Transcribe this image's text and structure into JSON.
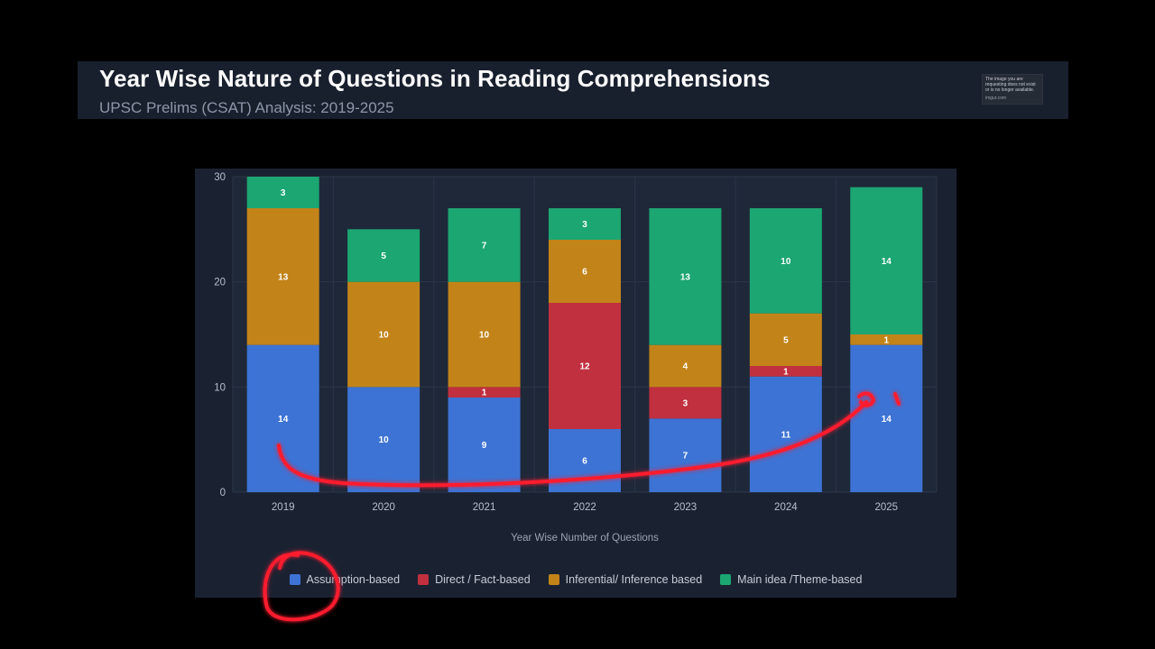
{
  "header": {
    "title": "Year Wise Nature of Questions in Reading Comprehensions",
    "subtitle": "UPSC Prelims (CSAT) Analysis: 2019-2025",
    "notice_text": "The image you are requesting does not exist or is no longer available.",
    "notice_source": "imgur.com"
  },
  "chart_data": {
    "type": "bar",
    "stacked": true,
    "categories": [
      "2019",
      "2020",
      "2021",
      "2022",
      "2023",
      "2024",
      "2025"
    ],
    "series": [
      {
        "name": "Assumption-based",
        "color": "#3d73d4",
        "values": [
          14,
          10,
          9,
          6,
          7,
          11,
          14
        ]
      },
      {
        "name": "Direct / Fact-based",
        "color": "#c0303f",
        "values": [
          0,
          0,
          1,
          12,
          3,
          1,
          0
        ]
      },
      {
        "name": "Inferential/ Inference based",
        "color": "#c28419",
        "values": [
          13,
          10,
          10,
          6,
          4,
          5,
          1
        ]
      },
      {
        "name": "Main idea /Theme-based",
        "color": "#1ca672",
        "values": [
          3,
          5,
          7,
          3,
          13,
          10,
          14
        ]
      }
    ],
    "xlabel": "Year Wise Number of Questions",
    "ylabel": "",
    "ylim": [
      0,
      30
    ],
    "yticks": [
      0,
      10,
      20,
      30
    ],
    "grid": true,
    "legend_position": "bottom",
    "data_labels": true
  },
  "annotation": {
    "color": "#ff1a2e",
    "description": "hand-drawn red arrow from 2019 Assumption bar to 2025 Assumption bar, circle around legend swatch"
  }
}
